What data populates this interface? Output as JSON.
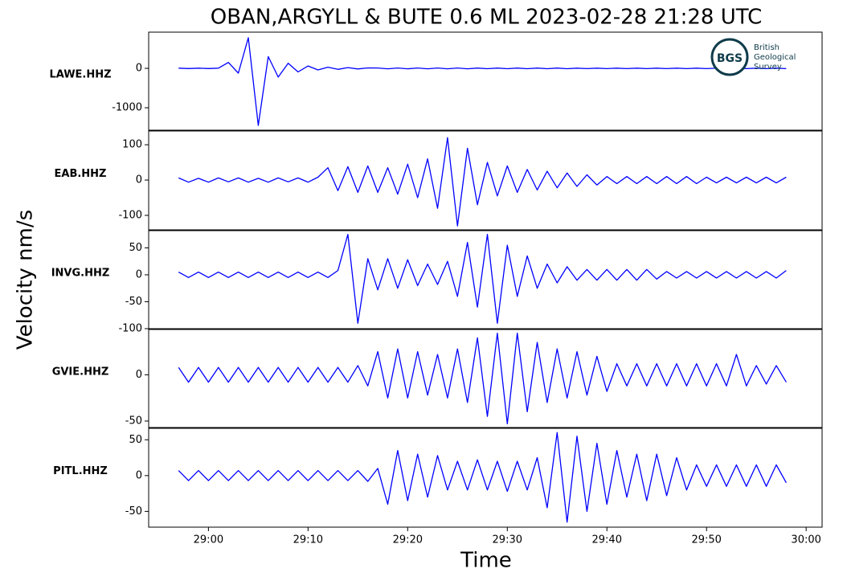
{
  "title": "OBAN,ARGYLL & BUTE 0.6 ML   2023-02-28 21:28 UTC",
  "ylabel": "Velocity nm/s",
  "xlabel": "Time",
  "logo": {
    "abbr": "BGS",
    "lines": [
      "British",
      "Geological",
      "Survey"
    ]
  },
  "chart_data": [
    {
      "type": "line",
      "ylabel": "LAWE.HHZ",
      "color": "#0000ff",
      "xlim": [
        -6,
        61.6
      ],
      "ylim": [
        -1570,
        920
      ],
      "yticks": [
        -1000,
        0
      ],
      "x": [
        -3,
        -2,
        -1,
        0,
        1,
        2,
        3,
        4,
        5,
        6,
        7,
        8,
        9,
        10,
        11,
        12,
        13,
        14,
        15,
        16,
        17,
        18,
        19,
        20,
        21,
        22,
        23,
        24,
        25,
        26,
        27,
        28,
        29,
        30,
        31,
        32,
        33,
        34,
        35,
        36,
        37,
        38,
        39,
        40,
        41,
        42,
        43,
        44,
        45,
        46,
        47,
        48,
        49,
        50,
        51,
        52,
        53,
        54,
        55,
        56,
        57,
        58
      ],
      "values": [
        5,
        -5,
        5,
        -5,
        6,
        150,
        -120,
        780,
        -1450,
        300,
        -220,
        130,
        -90,
        60,
        -40,
        30,
        -25,
        20,
        -15,
        12,
        10,
        -10,
        10,
        -10,
        10,
        -10,
        10,
        -10,
        10,
        -10,
        8,
        -8,
        8,
        -8,
        8,
        -8,
        8,
        -8,
        8,
        -8,
        6,
        -6,
        6,
        -6,
        6,
        -6,
        6,
        -6,
        6,
        -6,
        6,
        -6,
        6,
        -6,
        6,
        -6,
        6,
        -6,
        6,
        -6,
        6,
        -6
      ]
    },
    {
      "type": "line",
      "ylabel": "EAB.HHZ",
      "color": "#0000ff",
      "xlim": [
        -6,
        61.6
      ],
      "ylim": [
        -141,
        139
      ],
      "yticks": [
        -100,
        0,
        100
      ],
      "x": [
        -3,
        -2,
        -1,
        0,
        1,
        2,
        3,
        4,
        5,
        6,
        7,
        8,
        9,
        10,
        11,
        12,
        13,
        14,
        15,
        16,
        17,
        18,
        19,
        20,
        21,
        22,
        23,
        24,
        25,
        26,
        27,
        28,
        29,
        30,
        31,
        32,
        33,
        34,
        35,
        36,
        37,
        38,
        39,
        40,
        41,
        42,
        43,
        44,
        45,
        46,
        47,
        48,
        49,
        50,
        51,
        52,
        53,
        54,
        55,
        56,
        57,
        58
      ],
      "values": [
        6,
        -6,
        5,
        -6,
        6,
        -5,
        6,
        -6,
        5,
        -6,
        6,
        -5,
        6,
        -6,
        8,
        35,
        -30,
        38,
        -35,
        40,
        -35,
        35,
        -40,
        45,
        -50,
        60,
        -80,
        120,
        -130,
        90,
        -70,
        50,
        -45,
        40,
        -35,
        30,
        -28,
        25,
        -22,
        20,
        -18,
        15,
        -14,
        10,
        -10,
        10,
        -10,
        10,
        -10,
        10,
        -10,
        10,
        -10,
        8,
        -8,
        8,
        -8,
        8,
        -8,
        8,
        -8,
        8
      ]
    },
    {
      "type": "line",
      "ylabel": "INVG.HHZ",
      "color": "#0000ff",
      "xlim": [
        -6,
        61.6
      ],
      "ylim": [
        -100,
        82
      ],
      "yticks": [
        -100,
        -50,
        0,
        50
      ],
      "x": [
        -3,
        -2,
        -1,
        0,
        1,
        2,
        3,
        4,
        5,
        6,
        7,
        8,
        9,
        10,
        11,
        12,
        13,
        14,
        15,
        16,
        17,
        18,
        19,
        20,
        21,
        22,
        23,
        24,
        25,
        26,
        27,
        28,
        29,
        30,
        31,
        32,
        33,
        34,
        35,
        36,
        37,
        38,
        39,
        40,
        41,
        42,
        43,
        44,
        45,
        46,
        47,
        48,
        49,
        50,
        51,
        52,
        53,
        54,
        55,
        56,
        57,
        58
      ],
      "values": [
        5,
        -5,
        5,
        -5,
        5,
        -5,
        5,
        -5,
        5,
        -5,
        5,
        -5,
        5,
        -5,
        5,
        -5,
        8,
        75,
        -90,
        30,
        -28,
        30,
        -25,
        28,
        -20,
        20,
        -18,
        25,
        -40,
        60,
        -60,
        75,
        -90,
        55,
        -40,
        35,
        -25,
        20,
        -15,
        15,
        -10,
        10,
        -10,
        10,
        -10,
        10,
        -10,
        10,
        -8,
        6,
        -6,
        6,
        -6,
        6,
        -6,
        6,
        -6,
        6,
        -6,
        6,
        -6,
        8
      ]
    },
    {
      "type": "line",
      "ylabel": "GVIE.HHZ",
      "color": "#0000ff",
      "xlim": [
        -6,
        61.6
      ],
      "ylim": [
        -57,
        49
      ],
      "yticks": [
        -50,
        0
      ],
      "x": [
        -3,
        -2,
        -1,
        0,
        1,
        2,
        3,
        4,
        5,
        6,
        7,
        8,
        9,
        10,
        11,
        12,
        13,
        14,
        15,
        16,
        17,
        18,
        19,
        20,
        21,
        22,
        23,
        24,
        25,
        26,
        27,
        28,
        29,
        30,
        31,
        32,
        33,
        34,
        35,
        36,
        37,
        38,
        39,
        40,
        41,
        42,
        43,
        44,
        45,
        46,
        47,
        48,
        49,
        50,
        51,
        52,
        53,
        54,
        55,
        56,
        57,
        58
      ],
      "values": [
        8,
        -8,
        8,
        -8,
        8,
        -8,
        8,
        -8,
        8,
        -8,
        8,
        -8,
        8,
        -8,
        8,
        -8,
        8,
        -8,
        10,
        -12,
        25,
        -25,
        28,
        -25,
        25,
        -22,
        22,
        -25,
        28,
        -30,
        40,
        -45,
        45,
        -53,
        45,
        -40,
        35,
        -30,
        28,
        -25,
        25,
        -22,
        20,
        -18,
        12,
        -12,
        12,
        -12,
        12,
        -12,
        12,
        -12,
        12,
        -12,
        12,
        -12,
        22,
        -12,
        10,
        -10,
        10,
        -8
      ]
    },
    {
      "type": "line",
      "ylabel": "PITL.HHZ",
      "color": "#0000ff",
      "xlim": [
        -6,
        61.6
      ],
      "ylim": [
        -72,
        66
      ],
      "yticks": [
        -50,
        0,
        50
      ],
      "xticks": [
        {
          "value": 0,
          "label": "29:00"
        },
        {
          "value": 10,
          "label": "29:10"
        },
        {
          "value": 20,
          "label": "29:20"
        },
        {
          "value": 30,
          "label": "29:30"
        },
        {
          "value": 40,
          "label": "29:40"
        },
        {
          "value": 50,
          "label": "29:50"
        },
        {
          "value": 60,
          "label": "30:00"
        }
      ],
      "x": [
        -3,
        -2,
        -1,
        0,
        1,
        2,
        3,
        4,
        5,
        6,
        7,
        8,
        9,
        10,
        11,
        12,
        13,
        14,
        15,
        16,
        17,
        18,
        19,
        20,
        21,
        22,
        23,
        24,
        25,
        26,
        27,
        28,
        29,
        30,
        31,
        32,
        33,
        34,
        35,
        36,
        37,
        38,
        39,
        40,
        41,
        42,
        43,
        44,
        45,
        46,
        47,
        48,
        49,
        50,
        51,
        52,
        53,
        54,
        55,
        56,
        57,
        58
      ],
      "values": [
        7,
        -7,
        7,
        -7,
        7,
        -7,
        7,
        -7,
        7,
        -7,
        7,
        -7,
        7,
        -7,
        7,
        -7,
        7,
        -7,
        7,
        -8,
        10,
        -40,
        35,
        -35,
        30,
        -30,
        28,
        -20,
        20,
        -20,
        22,
        -20,
        20,
        -22,
        20,
        -20,
        25,
        -45,
        60,
        -65,
        55,
        -50,
        45,
        -40,
        35,
        -30,
        30,
        -35,
        30,
        -28,
        25,
        -20,
        15,
        -15,
        15,
        -15,
        15,
        -15,
        15,
        -15,
        15,
        -10
      ]
    }
  ]
}
